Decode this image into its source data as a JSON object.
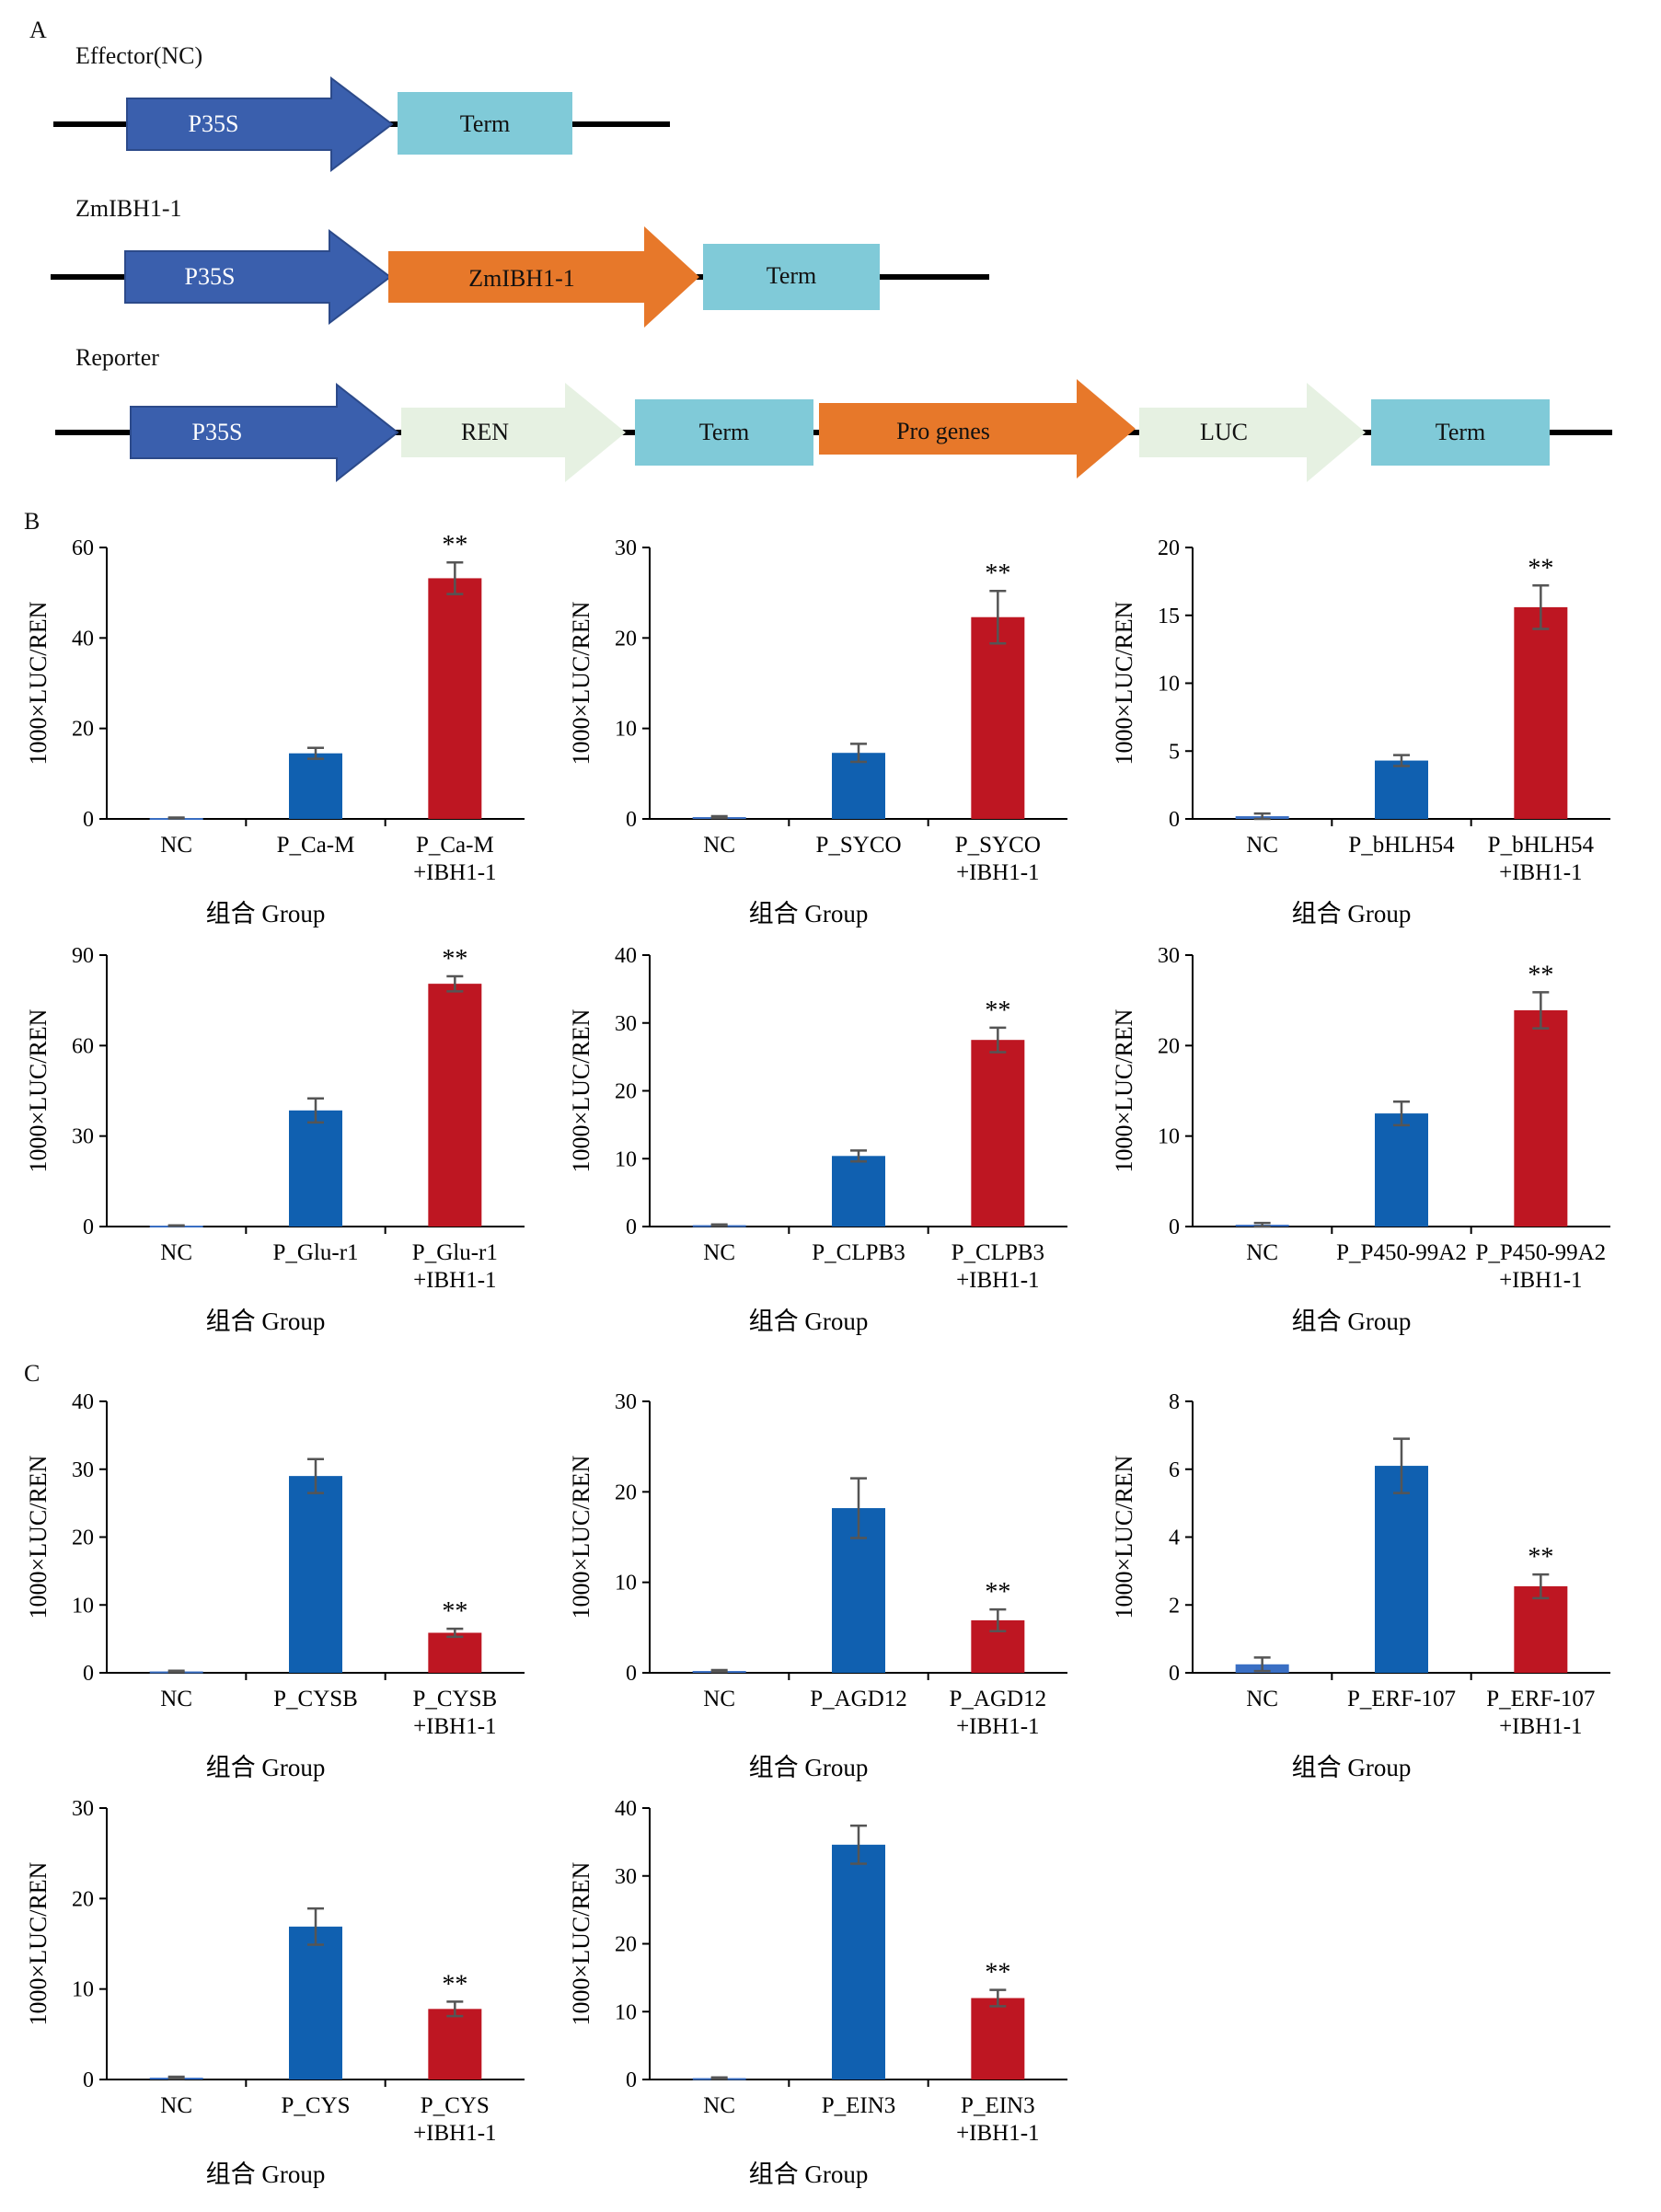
{
  "panels": {
    "a": "A",
    "b": "B",
    "c": "C"
  },
  "constructs": {
    "effector": {
      "title": "Effector(NC)",
      "promoter": "P35S",
      "term": "Term"
    },
    "zmibh": {
      "title": "ZmIBH1-1",
      "promoter": "P35S",
      "gene": "ZmIBH1-1",
      "term": "Term"
    },
    "reporter": {
      "title": "Reporter",
      "promoter": "P35S",
      "ren": "REN",
      "term1": "Term",
      "pro": "Pro genes",
      "luc": "LUC",
      "term2": "Term"
    }
  },
  "colors": {
    "promoter": "#3a5fad",
    "gene": "#e7782a",
    "term": "#80cad8",
    "reporter_gene": "#e6f1e2",
    "nc_bar": "#3a6fc4",
    "mid_bar": "#1060b0",
    "ibh_bar": "#be1622"
  },
  "chart_data": [
    {
      "type": "bar",
      "title": "",
      "xlabel": "组合 Group",
      "ylabel": "1000×LUC/REN",
      "ylim": [
        0,
        60
      ],
      "yticks": [
        0,
        20,
        40,
        60
      ],
      "categories": [
        "NC",
        "P_Ca-M",
        "P_Ca-M\n+IBH1-1"
      ],
      "values": [
        0.2,
        14.5,
        53.2
      ],
      "errors": [
        0.1,
        1.2,
        3.5
      ],
      "significance": [
        "",
        "",
        "**"
      ]
    },
    {
      "type": "bar",
      "title": "",
      "xlabel": "组合 Group",
      "ylabel": "1000×LUC/REN",
      "ylim": [
        0,
        30
      ],
      "yticks": [
        0,
        10,
        20,
        30
      ],
      "categories": [
        "NC",
        "P_SYCO",
        "P_SYCO\n+IBH1-1"
      ],
      "values": [
        0.2,
        7.3,
        22.3
      ],
      "errors": [
        0.1,
        1.0,
        2.9
      ],
      "significance": [
        "",
        "",
        "**"
      ]
    },
    {
      "type": "bar",
      "title": "",
      "xlabel": "组合 Group",
      "ylabel": "1000×LUC/REN",
      "ylim": [
        0,
        20
      ],
      "yticks": [
        0,
        5,
        10,
        15,
        20
      ],
      "categories": [
        "NC",
        "P_bHLH54",
        "P_bHLH54\n+IBH1-1"
      ],
      "values": [
        0.2,
        4.3,
        15.6
      ],
      "errors": [
        0.2,
        0.4,
        1.6
      ],
      "significance": [
        "",
        "",
        "**"
      ]
    },
    {
      "type": "bar",
      "title": "",
      "xlabel": "组合 Group",
      "ylabel": "1000×LUC/REN",
      "ylim": [
        0,
        90
      ],
      "yticks": [
        0,
        30,
        60,
        90
      ],
      "categories": [
        "NC",
        "P_Glu-r1",
        "P_Glu-r1\n+IBH1-1"
      ],
      "values": [
        0.3,
        38.5,
        80.5
      ],
      "errors": [
        0.1,
        4.0,
        2.5
      ],
      "significance": [
        "",
        "",
        "**"
      ]
    },
    {
      "type": "bar",
      "title": "",
      "xlabel": "组合 Group",
      "ylabel": "1000×LUC/REN",
      "ylim": [
        0,
        40
      ],
      "yticks": [
        0,
        10,
        20,
        30,
        40
      ],
      "categories": [
        "NC",
        "P_CLPB3",
        "P_CLPB3\n+IBH1-1"
      ],
      "values": [
        0.2,
        10.4,
        27.5
      ],
      "errors": [
        0.1,
        0.8,
        1.8
      ],
      "significance": [
        "",
        "",
        "**"
      ]
    },
    {
      "type": "bar",
      "title": "",
      "xlabel": "组合 Group",
      "ylabel": "1000×LUC/REN",
      "ylim": [
        0,
        30
      ],
      "yticks": [
        0,
        10,
        20,
        30
      ],
      "categories": [
        "NC",
        "P_P450-99A2",
        "P_P450-99A2\n+IBH1-1"
      ],
      "values": [
        0.2,
        12.5,
        23.9
      ],
      "errors": [
        0.2,
        1.3,
        2.0
      ],
      "significance": [
        "",
        "",
        "**"
      ]
    },
    {
      "type": "bar",
      "title": "",
      "xlabel": "组合 Group",
      "ylabel": "1000×LUC/REN",
      "ylim": [
        0,
        40
      ],
      "yticks": [
        0,
        10,
        20,
        30,
        40
      ],
      "categories": [
        "NC",
        "P_CYSB",
        "P_CYSB\n+IBH1-1"
      ],
      "values": [
        0.2,
        29.0,
        5.9
      ],
      "errors": [
        0.1,
        2.5,
        0.6
      ],
      "significance": [
        "",
        "",
        "**"
      ]
    },
    {
      "type": "bar",
      "title": "",
      "xlabel": "组合 Group",
      "ylabel": "1000×LUC/REN",
      "ylim": [
        0,
        30
      ],
      "yticks": [
        0,
        10,
        20,
        30
      ],
      "categories": [
        "NC",
        "P_AGD12",
        "P_AGD12\n+IBH1-1"
      ],
      "values": [
        0.2,
        18.2,
        5.8
      ],
      "errors": [
        0.1,
        3.3,
        1.2
      ],
      "significance": [
        "",
        "",
        "**"
      ]
    },
    {
      "type": "bar",
      "title": "",
      "xlabel": "组合 Group",
      "ylabel": "1000×LUC/REN",
      "ylim": [
        0,
        8
      ],
      "yticks": [
        0,
        2,
        4,
        6,
        8
      ],
      "categories": [
        "NC",
        "P_ERF-107",
        "P_ERF-107\n+IBH1-1"
      ],
      "values": [
        0.25,
        6.1,
        2.55
      ],
      "errors": [
        0.2,
        0.8,
        0.35
      ],
      "significance": [
        "",
        "",
        "**"
      ]
    },
    {
      "type": "bar",
      "title": "",
      "xlabel": "组合 Group",
      "ylabel": "1000×LUC/REN",
      "ylim": [
        0,
        30
      ],
      "yticks": [
        0,
        10,
        20,
        30
      ],
      "categories": [
        "NC",
        "P_CYS",
        "P_CYS\n+IBH1-1"
      ],
      "values": [
        0.2,
        16.9,
        7.8
      ],
      "errors": [
        0.1,
        2.0,
        0.8
      ],
      "significance": [
        "",
        "",
        "**"
      ]
    },
    {
      "type": "bar",
      "title": "",
      "xlabel": "组合 Group",
      "ylabel": "1000×LUC/REN",
      "ylim": [
        0,
        40
      ],
      "yticks": [
        0,
        10,
        20,
        30,
        40
      ],
      "categories": [
        "NC",
        "P_EIN3",
        "P_EIN3\n+IBH1-1"
      ],
      "values": [
        0.2,
        34.6,
        12.0
      ],
      "errors": [
        0.1,
        2.8,
        1.2
      ],
      "significance": [
        "",
        "",
        "**"
      ]
    }
  ]
}
